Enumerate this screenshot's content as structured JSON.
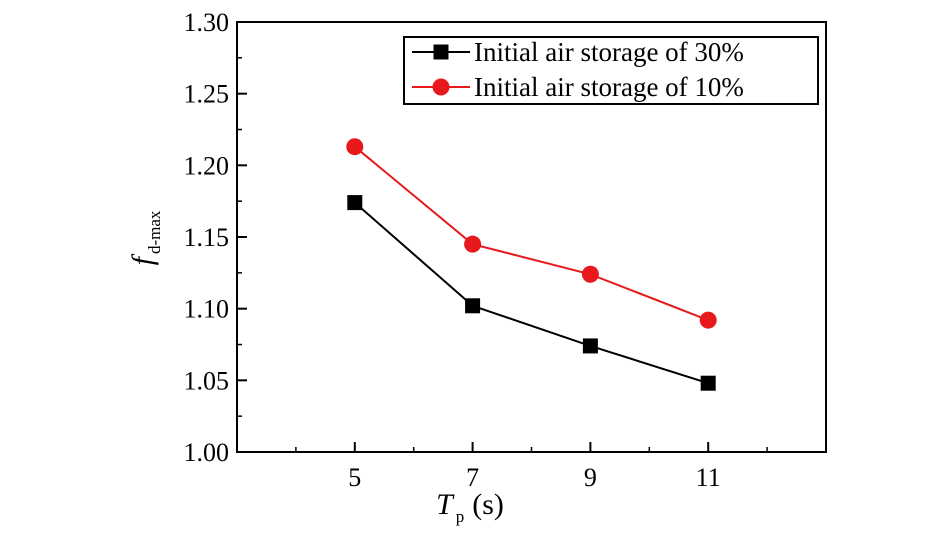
{
  "chart_data": {
    "type": "line",
    "xlabel": {
      "main": "T",
      "sub": "p",
      "unit": "(s)"
    },
    "ylabel": {
      "main": "f",
      "sub": "d-max"
    },
    "x": [
      5,
      7,
      9,
      11
    ],
    "x_ticks": [
      5,
      7,
      9,
      11
    ],
    "x_tick_labels": [
      "5",
      "7",
      "9",
      "11"
    ],
    "xlim": [
      3,
      13
    ],
    "ylim": [
      1.0,
      1.3
    ],
    "y_ticks": [
      1.0,
      1.05,
      1.1,
      1.15,
      1.2,
      1.25,
      1.3
    ],
    "y_tick_labels": [
      "1.00",
      "1.05",
      "1.10",
      "1.15",
      "1.20",
      "1.25",
      "1.30"
    ],
    "grid": false,
    "legend_position": "top-right",
    "series": [
      {
        "name": "Initial air storage of 30%",
        "marker": "square",
        "color": "#000000",
        "values": [
          1.174,
          1.102,
          1.074,
          1.048
        ]
      },
      {
        "name": "Initial air storage of 10%",
        "marker": "circle",
        "color": "#e8191c",
        "values": [
          1.213,
          1.145,
          1.124,
          1.092
        ]
      }
    ]
  }
}
